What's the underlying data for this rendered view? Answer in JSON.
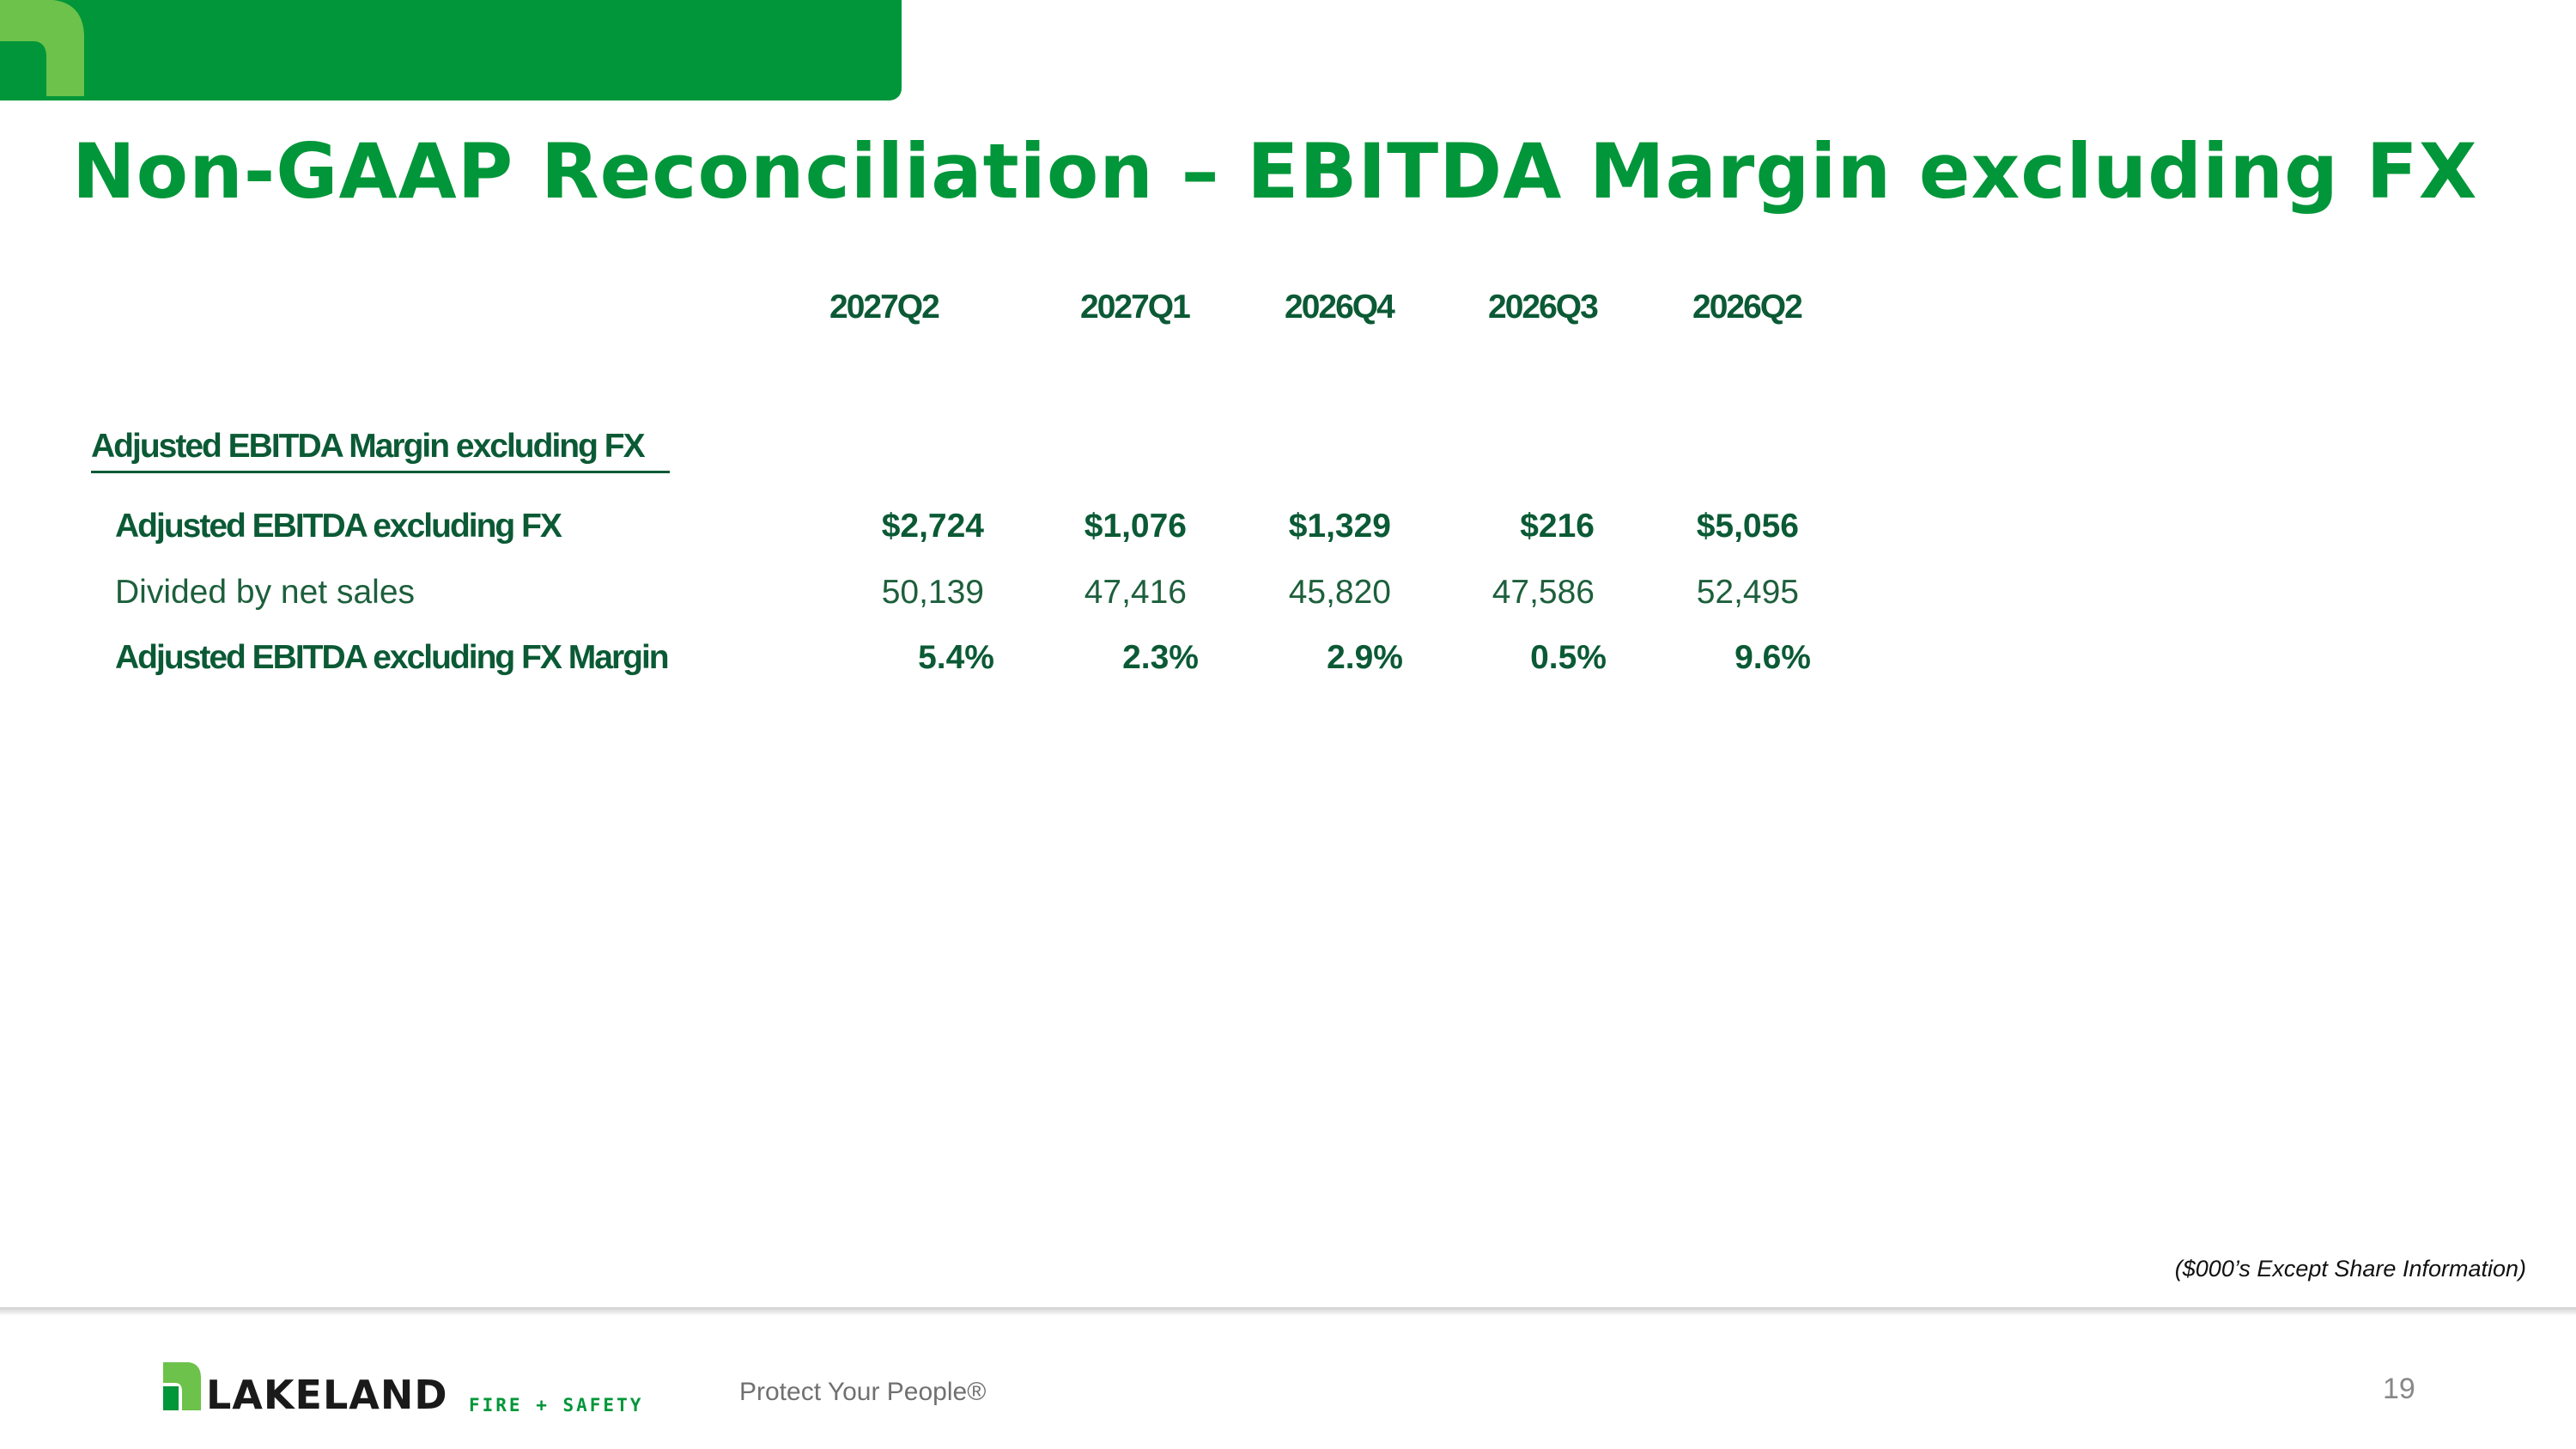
{
  "slide": {
    "title": "Non-GAAP Reconciliation – EBITDA Margin excluding FX",
    "footnote": "($000’s Except Share Information)",
    "page_number": "19"
  },
  "table": {
    "columns": [
      "2027Q2",
      "2027Q1",
      "2026Q4",
      "2026Q3",
      "2026Q2"
    ],
    "section_heading": "Adjusted EBITDA Margin excluding FX",
    "rows": [
      {
        "label": "Adjusted EBITDA excluding FX",
        "values": [
          "$2,724",
          "$1,076",
          "$1,329",
          "$216",
          "$5,056"
        ]
      },
      {
        "label": "Divided by net sales",
        "values": [
          "50,139",
          "47,416",
          "45,820",
          "47,586",
          "52,495"
        ]
      },
      {
        "label": "Adjusted EBITDA excluding FX Margin",
        "values": [
          "5.4%",
          "2.3%",
          "2.9%",
          "0.5%",
          "9.6%"
        ]
      }
    ]
  },
  "footer": {
    "brand_name": "LAKELAND",
    "brand_sub": "FIRE + SAFETY",
    "tagline": "Protect Your People®"
  },
  "colors": {
    "brand_green": "#009639",
    "light_green": "#6cc24a",
    "dark_green": "#0b5a35"
  }
}
